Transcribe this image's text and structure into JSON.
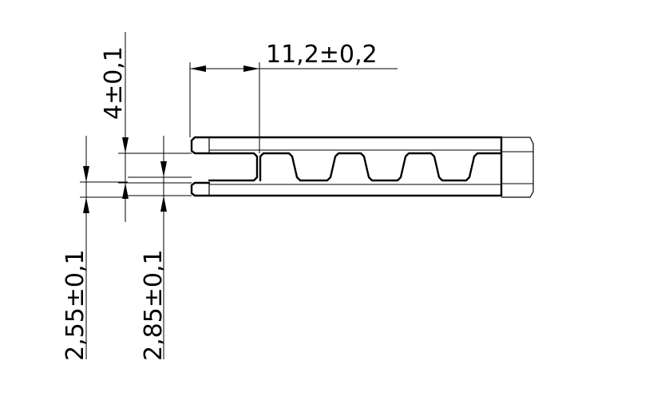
{
  "dimensions": {
    "length": "11,2±0,2",
    "height_top": "4±0,1",
    "offset_a": "2,55±0,1",
    "offset_b": "2,85±0,1"
  }
}
